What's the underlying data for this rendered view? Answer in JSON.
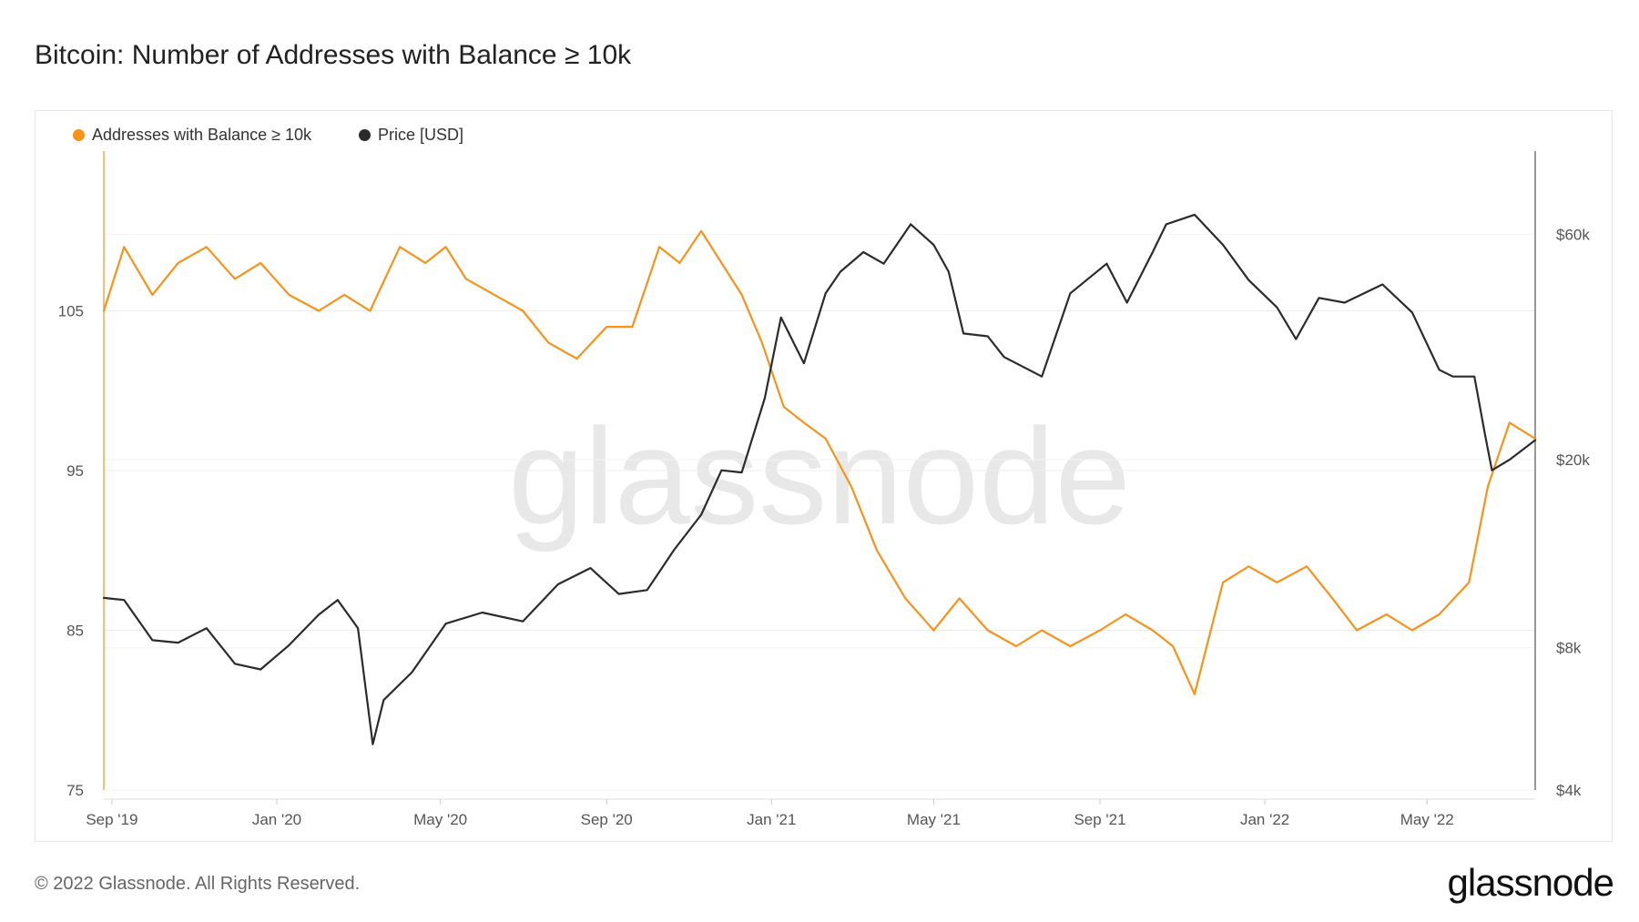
{
  "title": "Bitcoin: Number of Addresses with Balance ≥ 10k",
  "footer": "© 2022 Glassnode. All Rights Reserved.",
  "brand": "glassnode",
  "watermark": "glassnode",
  "chart_data": {
    "type": "line",
    "title": "Bitcoin: Number of Addresses with Balance ≥ 10k",
    "legend_position": "top-left",
    "x_tick_labels": [
      "Sep '19",
      "Jan '20",
      "May '20",
      "Sep '20",
      "Jan '21",
      "May '21",
      "Sep '21",
      "Jan '22",
      "May '22"
    ],
    "x_range": [
      "2019-08-26",
      "2022-07-20"
    ],
    "y_left": {
      "ticks": [
        75,
        85,
        95,
        105
      ],
      "tick_labels": [
        "75",
        "85",
        "95",
        "105"
      ],
      "range": [
        75,
        115
      ]
    },
    "y_right": {
      "scale": "log",
      "ticks": [
        4000,
        8000,
        20000,
        60000
      ],
      "tick_labels": [
        "$4k",
        "$8k",
        "$20k",
        "$60k"
      ],
      "range": [
        4000,
        90000
      ]
    },
    "series": [
      {
        "name": "Addresses with Balance ≥ 10k",
        "color": "#f7931a",
        "axis": "left",
        "x": [
          "2019-08-26",
          "2019-09-10",
          "2019-10-01",
          "2019-10-20",
          "2019-11-10",
          "2019-12-01",
          "2019-12-20",
          "2020-01-10",
          "2020-02-01",
          "2020-02-20",
          "2020-03-10",
          "2020-04-01",
          "2020-04-20",
          "2020-05-05",
          "2020-05-20",
          "2020-06-10",
          "2020-07-01",
          "2020-07-20",
          "2020-08-10",
          "2020-09-01",
          "2020-09-20",
          "2020-10-10",
          "2020-10-25",
          "2020-11-10",
          "2020-11-25",
          "2020-12-10",
          "2020-12-25",
          "2021-01-10",
          "2021-01-25",
          "2021-02-10",
          "2021-03-01",
          "2021-03-20",
          "2021-04-10",
          "2021-05-01",
          "2021-05-20",
          "2021-06-10",
          "2021-07-01",
          "2021-07-20",
          "2021-08-10",
          "2021-09-01",
          "2021-09-20",
          "2021-10-10",
          "2021-10-25",
          "2021-11-10",
          "2021-12-01",
          "2021-12-20",
          "2022-01-10",
          "2022-02-01",
          "2022-02-20",
          "2022-03-10",
          "2022-04-01",
          "2022-04-20",
          "2022-05-10",
          "2022-06-01",
          "2022-06-15",
          "2022-07-01",
          "2022-07-20"
        ],
        "values": [
          105,
          109,
          106,
          108,
          109,
          107,
          108,
          106,
          105,
          106,
          105,
          109,
          108,
          109,
          107,
          106,
          105,
          103,
          102,
          104,
          104,
          109,
          108,
          110,
          108,
          106,
          103,
          99,
          98,
          97,
          94,
          90,
          87,
          85,
          87,
          85,
          84,
          85,
          84,
          85,
          86,
          85,
          84,
          81,
          88,
          89,
          88,
          89,
          87,
          85,
          86,
          85,
          86,
          88,
          94,
          98,
          97
        ]
      },
      {
        "name": "Price [USD]",
        "color": "#2b2b2b",
        "axis": "right",
        "x": [
          "2019-08-26",
          "2019-09-10",
          "2019-10-01",
          "2019-10-20",
          "2019-11-10",
          "2019-12-01",
          "2019-12-20",
          "2020-01-10",
          "2020-02-01",
          "2020-02-15",
          "2020-03-01",
          "2020-03-12",
          "2020-03-20",
          "2020-04-10",
          "2020-05-05",
          "2020-06-01",
          "2020-07-01",
          "2020-07-27",
          "2020-08-20",
          "2020-09-10",
          "2020-10-01",
          "2020-10-21",
          "2020-11-10",
          "2020-11-25",
          "2020-12-10",
          "2020-12-27",
          "2021-01-08",
          "2021-01-25",
          "2021-02-10",
          "2021-02-21",
          "2021-03-10",
          "2021-03-25",
          "2021-04-14",
          "2021-05-01",
          "2021-05-12",
          "2021-05-23",
          "2021-06-10",
          "2021-06-22",
          "2021-07-20",
          "2021-08-10",
          "2021-09-06",
          "2021-09-21",
          "2021-10-10",
          "2021-10-20",
          "2021-11-10",
          "2021-12-01",
          "2021-12-20",
          "2022-01-10",
          "2022-01-24",
          "2022-02-10",
          "2022-03-01",
          "2022-03-29",
          "2022-04-20",
          "2022-05-10",
          "2022-05-20",
          "2022-06-05",
          "2022-06-13",
          "2022-06-18",
          "2022-07-01",
          "2022-07-20"
        ],
        "values": [
          10200,
          10100,
          8300,
          8200,
          8800,
          7400,
          7200,
          8100,
          9400,
          10100,
          8800,
          5000,
          6200,
          7100,
          9000,
          9500,
          9100,
          10900,
          11800,
          10400,
          10600,
          12900,
          15300,
          19000,
          18800,
          27000,
          40000,
          32000,
          45000,
          50000,
          55000,
          52000,
          63000,
          57000,
          50000,
          37000,
          36500,
          33000,
          30000,
          45000,
          52000,
          43000,
          55000,
          63000,
          66000,
          57000,
          48000,
          42000,
          36000,
          44000,
          43000,
          47000,
          41000,
          31000,
          30000,
          30000,
          22500,
          19000,
          20000,
          22000
        ]
      }
    ]
  }
}
